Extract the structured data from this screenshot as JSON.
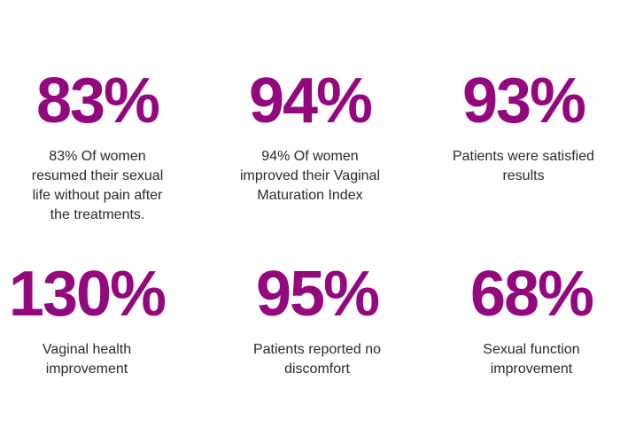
{
  "page": {
    "background_color": "#ffffff",
    "accent_color": "#94087E",
    "text_color": "#2a2a2a"
  },
  "stats": [
    {
      "value": "83%",
      "description_lines": [
        "83% Of women",
        "resumed their sexual",
        "life without pain after",
        "the treatments."
      ]
    },
    {
      "value": "94%",
      "description_lines": [
        "94% Of women",
        "improved their Vaginal",
        "Maturation Index"
      ]
    },
    {
      "value": "93%",
      "description_lines": [
        "Patients were satisfied",
        "results"
      ]
    },
    {
      "value": "130%",
      "description_lines": [
        "Vaginal health",
        "improvement"
      ]
    },
    {
      "value": "95%",
      "description_lines": [
        "Patients reported no",
        "discomfort"
      ]
    },
    {
      "value": "68%",
      "description_lines": [
        "Sexual function",
        "improvement"
      ]
    }
  ],
  "chart_data": {
    "type": "table",
    "columns": [
      "value_percent",
      "label"
    ],
    "rows": [
      [
        83,
        "83% Of women resumed their sexual life without pain after the treatments."
      ],
      [
        94,
        "94% Of women improved their Vaginal Maturation Index"
      ],
      [
        93,
        "Patients were satisfied results"
      ],
      [
        130,
        "Vaginal health improvement"
      ],
      [
        95,
        "Patients reported no discomfort"
      ],
      [
        68,
        "Sexual function improvement"
      ]
    ],
    "layout": "2 rows x 3 columns of big-number stat cards",
    "value_color": "#94087E",
    "label_color": "#2a2a2a"
  }
}
